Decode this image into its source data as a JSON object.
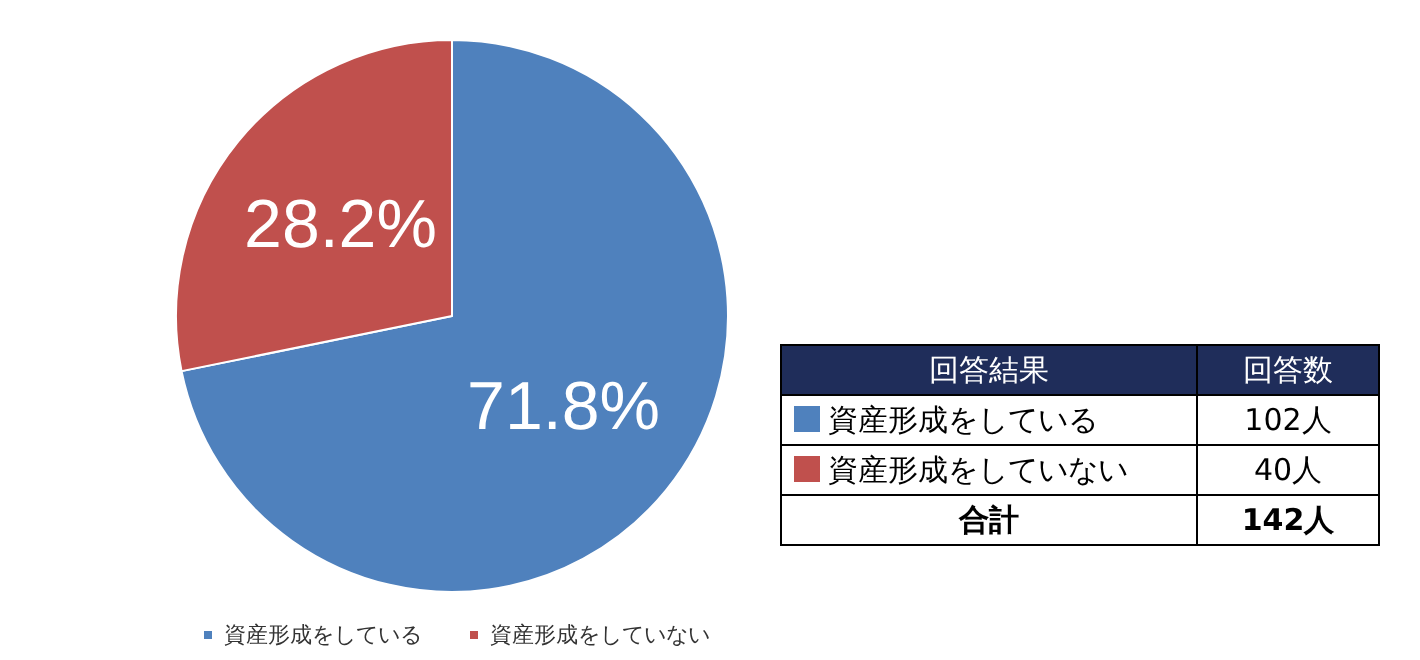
{
  "chart_data": {
    "type": "pie",
    "categories": [
      "資産形成をしている",
      "資産形成をしていない"
    ],
    "values": [
      71.8,
      28.2
    ],
    "colors": [
      "#4f81bd",
      "#c0504d"
    ],
    "value_labels": [
      "71.8%",
      "28.2%"
    ],
    "legend": "bottom left",
    "annotations": [
      "回答結果",
      "回答数",
      "102人",
      "40人",
      "合計",
      "142人"
    ]
  }
}
